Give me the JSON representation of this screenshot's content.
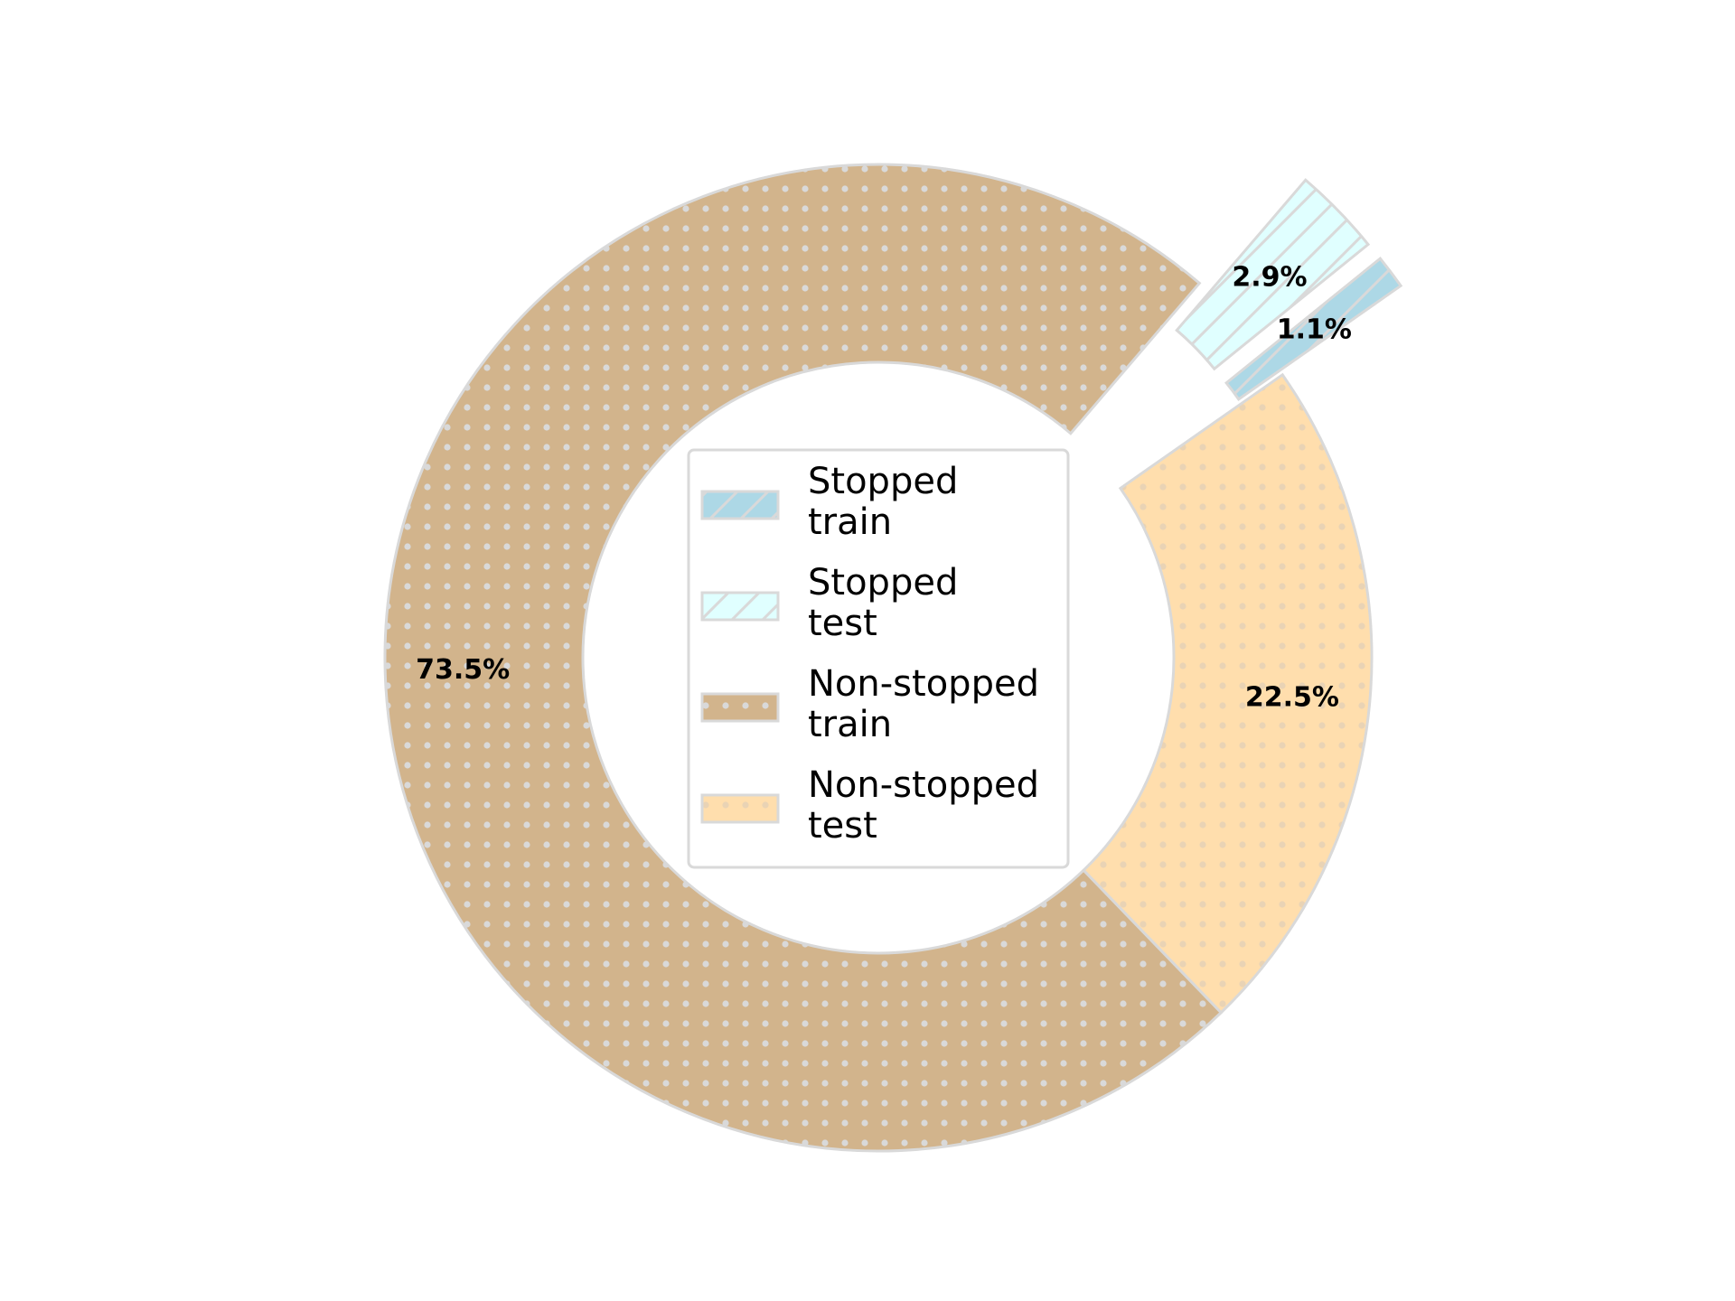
{
  "chart_data": {
    "type": "pie",
    "style": "donut",
    "slices": [
      {
        "legend_lines": [
          "Stopped",
          "train"
        ],
        "value": 1.1,
        "label": "1.1%",
        "color": "#add8e6",
        "hatch": "diagonal",
        "exploded": true
      },
      {
        "legend_lines": [
          "Stopped",
          "test"
        ],
        "value": 2.9,
        "label": "2.9%",
        "color": "#e0ffff",
        "hatch": "diagonal",
        "exploded": true
      },
      {
        "legend_lines": [
          "Non-stopped",
          "train"
        ],
        "value": 73.5,
        "label": "73.5%",
        "color": "#d2b48c",
        "hatch": "dots",
        "exploded": false
      },
      {
        "legend_lines": [
          "Non-stopped",
          "test"
        ],
        "value": 22.5,
        "label": "22.5%",
        "color": "#ffdead",
        "hatch": "dots",
        "exploded": false
      }
    ],
    "legend_position": "center",
    "edge_color": "#d9d9d9",
    "hatch_color": "#d9d9d9"
  }
}
